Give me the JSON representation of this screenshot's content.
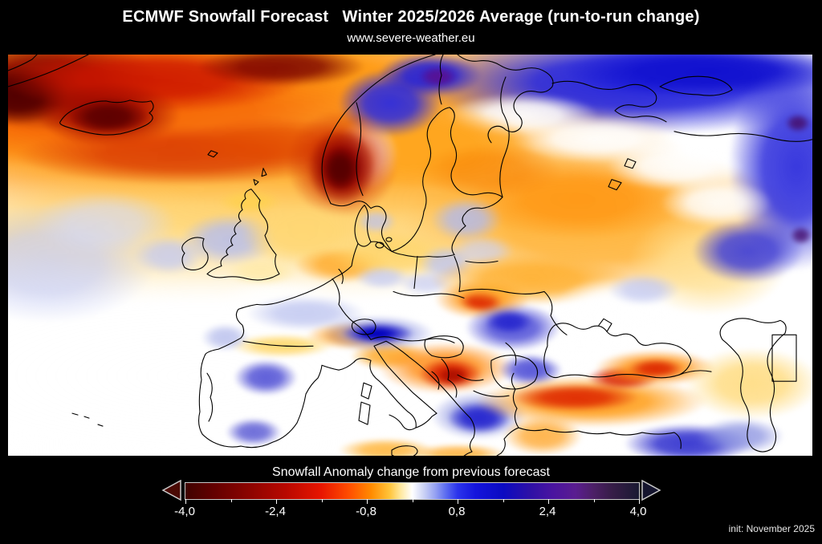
{
  "header": {
    "title": "ECMWF Snowfall Forecast   Winter 2025/2026 Average (run-to-run change)",
    "subtitle": "www.severe-weather.eu"
  },
  "footer": {
    "init_text": "init: November 2025"
  },
  "legend": {
    "title": "Snowfall Anomaly change from previous forecast",
    "tick_labels": [
      "-4,0",
      "-2,4",
      "-0,8",
      "0,8",
      "2,4",
      "4,0"
    ],
    "tick_values": [
      -4.0,
      -2.4,
      -0.8,
      0.8,
      2.4,
      4.0
    ],
    "major_tick_fracs": [
      0,
      20,
      40,
      60,
      80,
      100
    ],
    "minor_tick_fracs": [
      10,
      30,
      50,
      70,
      90
    ],
    "range": [
      -4.0,
      4.0
    ],
    "left_arrow_color": "#4a0a04",
    "right_arrow_color": "#15152e",
    "arrow_stroke_color": "#c9c9c9",
    "tick_color": "#ffffff",
    "gradient_stops": [
      [
        0,
        "#3f0300"
      ],
      [
        6,
        "#620000"
      ],
      [
        14,
        "#8c0400"
      ],
      [
        22,
        "#b80800"
      ],
      [
        30,
        "#e81600"
      ],
      [
        36,
        "#ff4d00"
      ],
      [
        41,
        "#ff8b00"
      ],
      [
        45,
        "#ffc43a"
      ],
      [
        47.5,
        "#ffe9a0"
      ],
      [
        50,
        "#ffffff"
      ],
      [
        52.5,
        "#ccd3f5"
      ],
      [
        55,
        "#97a3f2"
      ],
      [
        57.5,
        "#5a6af0"
      ],
      [
        60,
        "#2b34ec"
      ],
      [
        64,
        "#1414dc"
      ],
      [
        70,
        "#0b0bc2"
      ],
      [
        76,
        "#2e10a6"
      ],
      [
        81,
        "#4a14a0"
      ],
      [
        86,
        "#5a1d90"
      ],
      [
        90,
        "#4c2066"
      ],
      [
        94,
        "#371d48"
      ],
      [
        100,
        "#1a1a32"
      ]
    ]
  },
  "map": {
    "background": "#ffffff",
    "coastline_color": "#000000",
    "anomaly_regions": [
      {
        "area": "North Atlantic (NW corner)",
        "anomaly": -3.5
      },
      {
        "area": "Iceland",
        "anomaly": -4.0
      },
      {
        "area": "Southwest Norway",
        "anomaly": -4.0
      },
      {
        "area": "Sweden / Finland",
        "anomaly": -1.6
      },
      {
        "area": "Northern Norway coast",
        "anomaly": 2.5
      },
      {
        "area": "Barents / northern Russia",
        "anomaly": 2.5
      },
      {
        "area": "Far northeast Europe (right edge)",
        "anomaly": 2.0
      },
      {
        "area": "Western Russia",
        "anomaly": -1.6
      },
      {
        "area": "British Isles",
        "anomaly": 0.4
      },
      {
        "area": "Atlantic / Iberia (southwest)",
        "anomaly": 0.0
      },
      {
        "area": "Central Spain",
        "anomaly": 1.5
      },
      {
        "area": "Alps",
        "anomaly": -1.5
      },
      {
        "area": "Slovenia / NE Adriatic",
        "anomaly": 2.5
      },
      {
        "area": "Serbia / Bosnia (Balkans)",
        "anomaly": -2.5
      },
      {
        "area": "Carpathians",
        "anomaly": -2.4
      },
      {
        "area": "Romania / Bulgaria",
        "anomaly": 1.5
      },
      {
        "area": "Greece",
        "anomaly": 2.0
      },
      {
        "area": "Ukraine",
        "anomaly": -1.5
      },
      {
        "area": "Central-Eastern Turkey",
        "anomaly": -2.5
      },
      {
        "area": "Caucasus",
        "anomaly": -2.4
      },
      {
        "area": "SE Turkey / Middle East",
        "anomaly": 2.2
      }
    ],
    "blob_format": [
      "name",
      "center_x_pct",
      "center_y_pct",
      "width_pct",
      "height_pct",
      "color",
      "alpha"
    ],
    "field_blobs": [
      [
        "wash-orange-nw",
        20,
        12,
        130,
        64,
        "#ff9200",
        1
      ],
      [
        "wash-orange-nw2",
        40,
        28,
        90,
        46,
        "#ffad2e",
        0.95
      ],
      [
        "wash-red-band-nw",
        14,
        14,
        70,
        30,
        "#f25200",
        0.7
      ],
      [
        "wash-yellow-west",
        24,
        46,
        100,
        34,
        "#ffd879",
        0.92
      ],
      [
        "wash-white-sw",
        24,
        80,
        130,
        75,
        "#ffffff",
        1
      ],
      [
        "wash-white-france",
        34,
        61,
        16,
        10,
        "#ffffff",
        0.75
      ],
      [
        "wash-orange-russia",
        74,
        42,
        50,
        38,
        "#ffb133",
        0.95
      ],
      [
        "orange-russia-core",
        71,
        36,
        28,
        20,
        "#ff9714",
        0.9
      ],
      [
        "yellow-russia-east",
        87,
        52,
        20,
        26,
        "#ffe091",
        0.85
      ],
      [
        "blue-band-north",
        79,
        7,
        56,
        26,
        "#2525dc",
        1
      ],
      [
        "blue-band-core",
        87,
        4,
        36,
        13,
        "#1111cf",
        1
      ],
      [
        "blue-right-column",
        98,
        28,
        17,
        52,
        "#2e2edc",
        0.95
      ],
      [
        "blue-right-bulge",
        92,
        49,
        14,
        16,
        "#3a3ad8",
        0.9
      ],
      [
        "white-ne-1",
        64,
        15,
        19,
        11,
        "#ffffff",
        0.95
      ],
      [
        "white-ne-2",
        73,
        21,
        21,
        12,
        "#ffffff",
        0.95
      ],
      [
        "white-ne-3",
        83,
        28,
        17,
        12,
        "#ffffff",
        0.9
      ],
      [
        "white-ne-4",
        88,
        37,
        14,
        12,
        "#ffffff",
        0.9
      ],
      [
        "orange-scandinavia",
        52,
        23,
        27,
        21,
        "#ffa51d",
        0.95
      ],
      [
        "orange-finland",
        60,
        29,
        18,
        14,
        "#f77e00",
        0.55
      ],
      [
        "white-scand-gap",
        44.5,
        25,
        8,
        18,
        "#ffffff",
        0.9
      ],
      [
        "blue-norway-coast",
        47.5,
        12,
        13,
        17,
        "#2a2ae0",
        0.95
      ],
      [
        "blue-norway-coast2",
        52.5,
        5,
        13,
        11,
        "#1f1fdd",
        0.95
      ],
      [
        "purple-norway",
        53.5,
        5.5,
        5,
        5.5,
        "#5a0f8e",
        0.9
      ],
      [
        "darkred-nw",
        5,
        7,
        28,
        24,
        "#8c0a00",
        1
      ],
      [
        "maroon-nw",
        1,
        10,
        13,
        15,
        "#520000",
        1
      ],
      [
        "red-top-band",
        18,
        6,
        38,
        17,
        "#cc1500",
        0.9
      ],
      [
        "darkred-top-mid",
        34,
        3,
        21,
        10,
        "#7c0400",
        0.9
      ],
      [
        "iceland-red",
        12.5,
        15,
        18,
        16,
        "#a30b00",
        0.95
      ],
      [
        "iceland-core",
        12.5,
        15.5,
        10,
        9,
        "#5d0000",
        1
      ],
      [
        "red-band-s-iceland",
        22,
        25,
        42,
        15,
        "#d63200",
        0.8
      ],
      [
        "red-band-faroe",
        33,
        22,
        23,
        13,
        "#e24a00",
        0.75
      ],
      [
        "norway-red-halo",
        41.5,
        27,
        14,
        27,
        "#cc2b00",
        0.85
      ],
      [
        "norway-darkred",
        41.5,
        28,
        8.5,
        19,
        "#8b0000",
        1
      ],
      [
        "norway-core",
        41.3,
        28.5,
        4.6,
        11,
        "#550000",
        1
      ],
      [
        "lblue-atlantic",
        5,
        52,
        27,
        30,
        "#c7cdf3",
        0.75
      ],
      [
        "lblue-atlantic2",
        12,
        42,
        18,
        16,
        "#d5daf6",
        0.7
      ],
      [
        "lblue-irishsea",
        27.5,
        46,
        12,
        13,
        "#b5bdee",
        0.85
      ],
      [
        "lblue-ireland-w",
        20,
        50,
        9,
        10,
        "#c3c9f1",
        0.8
      ],
      [
        "yellow-scotland",
        30,
        36.5,
        8,
        6,
        "#ffd150",
        0.9
      ],
      [
        "yellow-england",
        31.5,
        54,
        9,
        7,
        "#ffeaa8",
        0.85
      ],
      [
        "yellow-northsea",
        37,
        45,
        16,
        16,
        "#ffd773",
        0.9
      ],
      [
        "orange-germany",
        41.5,
        52.5,
        12,
        9,
        "#ffab2d",
        0.9
      ],
      [
        "yellow-central",
        48,
        50,
        17,
        12,
        "#ffd467",
        0.85
      ],
      [
        "lblue-kattegat",
        45.8,
        41.5,
        5,
        6,
        "#bcc3ef",
        0.75
      ],
      [
        "lblue-baltics",
        57,
        41,
        9,
        11,
        "#b2baec",
        0.85
      ],
      [
        "lblue-belarus",
        59,
        49,
        8,
        8,
        "#ccd1f3",
        0.7
      ],
      [
        "lblue-poland",
        54.5,
        52,
        7,
        9,
        "#bdc4ef",
        0.8
      ],
      [
        "lblue-czech",
        46.5,
        55.5,
        7,
        6,
        "#c5cbf2",
        0.8
      ],
      [
        "lblue-czech2",
        52,
        57,
        7,
        6,
        "#c9cef3",
        0.75
      ],
      [
        "lblue-france",
        37,
        64.5,
        15,
        9,
        "#bfc6f0",
        0.85
      ],
      [
        "orange-alps",
        43.5,
        70,
        13,
        7,
        "#ff9e1f",
        0.95
      ],
      [
        "orange-alps2",
        47.5,
        75,
        10,
        7,
        "#ffa929",
        0.9
      ],
      [
        "blue-slovenia-halo",
        46,
        69.5,
        14,
        9,
        "#8e96e2",
        0.85
      ],
      [
        "blue-slovenia",
        46,
        69.5,
        9,
        5.5,
        "#1b1bcf",
        0.95
      ],
      [
        "blue-slovenia-core",
        45.8,
        69.5,
        5,
        3.2,
        "#0202bc",
        1
      ],
      [
        "yellow-spain-n",
        34,
        72.5,
        13,
        6,
        "#ffd769",
        0.9
      ],
      [
        "blue-spain-c",
        32,
        80.5,
        8,
        9,
        "#4343d2",
        0.85
      ],
      [
        "blue-spain-s",
        30.5,
        94,
        7,
        7,
        "#4a4ad0",
        0.8
      ],
      [
        "lblue-portugal",
        27,
        70.5,
        6,
        7,
        "#aab2e9",
        0.7
      ],
      [
        "orange-balkan-halo",
        54.5,
        78,
        17,
        13,
        "#ff8e17",
        0.9
      ],
      [
        "red-serbia",
        55,
        79.5,
        8,
        8,
        "#d81f00",
        0.95
      ],
      [
        "red-serbia-core",
        55.3,
        80,
        4,
        4.5,
        "#ae1000",
        1
      ],
      [
        "orange-carp-halo",
        59,
        61,
        12,
        10,
        "#ff9615",
        0.9
      ],
      [
        "red-carpathians",
        58.8,
        61.5,
        5.5,
        5.5,
        "#dd2700",
        0.95
      ],
      [
        "blue-romania",
        62.8,
        68,
        12,
        12,
        "#4a4ad6",
        0.9
      ],
      [
        "blue-romania-core",
        62.3,
        66.5,
        6,
        6,
        "#2626ce",
        0.95
      ],
      [
        "blue-bulgaria",
        65,
        78.5,
        8,
        8,
        "#3d3dd2",
        0.85
      ],
      [
        "blue-greece-halo",
        58.5,
        90,
        12,
        12,
        "#8a92e0",
        0.85
      ],
      [
        "blue-greece",
        58.6,
        90.5,
        8,
        8,
        "#2222ce",
        0.95
      ],
      [
        "orange-ukraine",
        65,
        56,
        25,
        13,
        "#ffae2b",
        0.9
      ],
      [
        "white-east-ukr",
        75.5,
        62,
        15,
        13,
        "#ffffff",
        0.9
      ],
      [
        "lblue-donets",
        79,
        58.5,
        9,
        8,
        "#c2c8f0",
        0.8
      ],
      [
        "white-blacksea",
        71.5,
        74,
        13,
        9,
        "#ffffff",
        0.85
      ],
      [
        "orange-turkey",
        72.5,
        86.5,
        29,
        13,
        "#ff9d17",
        0.95
      ],
      [
        "red-turkey",
        70.5,
        85.5,
        16,
        7,
        "#dd2300",
        0.9
      ],
      [
        "red-turkey-e",
        76.5,
        80.5,
        9,
        6,
        "#d61d00",
        0.9
      ],
      [
        "orange-caucasus",
        80.5,
        78,
        15,
        9,
        "#ff9313",
        0.9
      ],
      [
        "red-caucasus",
        80.5,
        78.2,
        7,
        5,
        "#dc2700",
        0.95
      ],
      [
        "blue-mideast",
        84.5,
        97,
        16,
        10,
        "#2828cc",
        0.9
      ],
      [
        "lblue-mideast",
        91,
        95,
        11,
        9,
        "#8890e0",
        0.8
      ],
      [
        "yellow-caspian",
        92.5,
        82,
        17,
        18,
        "#ffd977",
        0.85
      ],
      [
        "orange-aegean",
        66.5,
        95,
        10,
        10,
        "#ffa830",
        0.85
      ],
      [
        "orange-sicily",
        47,
        98.5,
        12,
        6,
        "#ffb63d",
        0.9
      ],
      [
        "orange-nafrica",
        56,
        99.5,
        12,
        5,
        "#ffae33",
        0.85
      ],
      [
        "purple-dot-1",
        98.2,
        17,
        3.2,
        4.6,
        "#46106e",
        0.9
      ],
      [
        "purple-dot-2",
        98.6,
        45,
        2.8,
        4.6,
        "#46106e",
        0.85
      ]
    ]
  }
}
